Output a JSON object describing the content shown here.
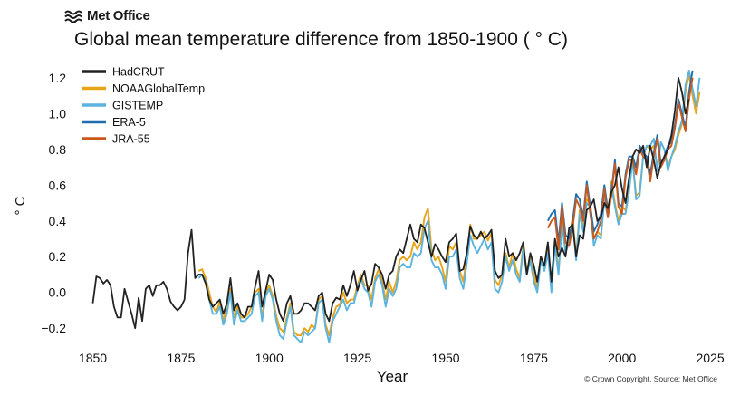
{
  "brand": {
    "name": "Met Office",
    "logo_icon": "met-office-wave-icon"
  },
  "credit": "© Crown Copyright. Source: Met Office",
  "chart_data": {
    "type": "line",
    "title": "Global mean temperature difference from 1850-1900 ( ° C)",
    "xlabel": "Year",
    "ylabel": "° C",
    "xlim": [
      1845,
      2026
    ],
    "ylim": [
      -0.28,
      1.27
    ],
    "xticks": [
      1850,
      1875,
      1900,
      1925,
      1950,
      1975,
      2000,
      2025
    ],
    "yticks": [
      -0.2,
      0.0,
      0.2,
      0.4,
      0.6,
      0.8,
      1.0,
      1.2
    ],
    "ytick_labels": [
      "−0.2",
      "0.0",
      "0.2",
      "0.4",
      "0.6",
      "0.8",
      "1.0",
      "1.2"
    ],
    "grid": false,
    "legend_position": "top-left",
    "series": [
      {
        "name": "HadCRUT",
        "color": "#222222",
        "start_year": 1850,
        "values": [
          -0.06,
          0.09,
          0.08,
          0.05,
          0.07,
          0.04,
          -0.08,
          -0.14,
          -0.14,
          0.02,
          -0.05,
          -0.12,
          -0.2,
          -0.03,
          -0.16,
          0.02,
          0.04,
          -0.02,
          0.04,
          0.04,
          0.06,
          0.02,
          -0.05,
          -0.08,
          -0.1,
          -0.08,
          -0.04,
          0.22,
          0.35,
          0.08,
          0.1,
          0.1,
          0.05,
          -0.04,
          -0.08,
          -0.06,
          -0.04,
          -0.12,
          -0.06,
          0.08,
          -0.1,
          -0.06,
          -0.12,
          -0.14,
          -0.08,
          -0.08,
          0.03,
          0.12,
          -0.08,
          0.01,
          0.1,
          0.07,
          -0.04,
          -0.12,
          -0.16,
          -0.06,
          -0.02,
          -0.12,
          -0.12,
          -0.1,
          -0.06,
          -0.06,
          -0.08,
          -0.1,
          -0.02,
          0.0,
          -0.12,
          -0.16,
          -0.06,
          -0.03,
          -0.04,
          0.04,
          -0.02,
          0.04,
          0.12,
          0.01,
          0.07,
          0.12,
          0.01,
          0.05,
          0.16,
          0.14,
          0.1,
          0.02,
          0.1,
          0.12,
          0.2,
          0.24,
          0.22,
          0.3,
          0.38,
          0.3,
          0.28,
          0.38,
          0.36,
          0.28,
          0.2,
          0.27,
          0.24,
          0.2,
          0.17,
          0.28,
          0.3,
          0.33,
          0.12,
          0.13,
          0.22,
          0.37,
          0.32,
          0.3,
          0.34,
          0.3,
          0.32,
          0.35,
          0.12,
          0.08,
          0.1,
          0.3,
          0.2,
          0.22,
          0.18,
          0.22,
          0.28,
          0.1,
          0.22,
          0.15,
          0.06,
          0.2,
          0.15,
          0.28,
          0.06,
          0.3,
          0.2,
          0.25,
          0.2,
          0.36,
          0.38,
          0.2,
          0.32,
          0.3,
          0.46,
          0.48,
          0.52,
          0.4,
          0.42,
          0.5,
          0.47,
          0.56,
          0.6,
          0.7,
          0.58,
          0.5,
          0.64,
          0.76,
          0.8,
          0.78,
          0.82,
          0.7,
          0.82,
          0.74,
          0.64,
          0.72,
          0.76,
          0.8,
          0.88,
          1.02,
          1.2,
          1.12,
          1.0,
          1.08
        ]
      },
      {
        "name": "NOAAGlobalTemp",
        "color": "#E8A317",
        "start_year": 1880,
        "values": [
          0.12,
          0.13,
          0.08,
          0.0,
          -0.08,
          -0.11,
          -0.05,
          -0.16,
          -0.08,
          0.02,
          -0.14,
          -0.08,
          -0.14,
          -0.14,
          -0.12,
          -0.08,
          0.0,
          0.02,
          -0.14,
          0.0,
          0.04,
          -0.02,
          -0.13,
          -0.2,
          -0.22,
          -0.14,
          -0.06,
          -0.22,
          -0.24,
          -0.24,
          -0.2,
          -0.22,
          -0.18,
          -0.2,
          -0.04,
          -0.02,
          -0.18,
          -0.24,
          -0.14,
          -0.08,
          -0.07,
          0.0,
          -0.06,
          -0.04,
          -0.04,
          0.04,
          0.1,
          0.04,
          0.04,
          -0.04,
          0.08,
          0.13,
          0.06,
          -0.04,
          0.06,
          0.0,
          0.06,
          0.18,
          0.2,
          0.18,
          0.2,
          0.28,
          0.24,
          0.28,
          0.42,
          0.47,
          0.24,
          0.18,
          0.2,
          0.14,
          0.06,
          0.26,
          0.24,
          0.28,
          0.12,
          0.06,
          0.2,
          0.38,
          0.3,
          0.3,
          0.32,
          0.34,
          0.29,
          0.33,
          0.07,
          0.04,
          0.1,
          0.22,
          0.14,
          0.22,
          0.13,
          0.08,
          0.26,
          0.12,
          0.2,
          0.1,
          0.02,
          0.2,
          0.14,
          0.24,
          0.02,
          0.28,
          0.12,
          0.4,
          0.24,
          0.3,
          0.42,
          0.2,
          0.46,
          0.36,
          0.52,
          0.5,
          0.3,
          0.34,
          0.32,
          0.54,
          0.44,
          0.62,
          0.5,
          0.4,
          0.48,
          0.46,
          0.58,
          0.74,
          0.54,
          0.56,
          0.76,
          0.82,
          0.8,
          0.82,
          0.7,
          0.84,
          0.8,
          0.7,
          0.76,
          0.8,
          0.88,
          0.94,
          1.12,
          1.22,
          1.1,
          1.0,
          1.12
        ]
      },
      {
        "name": "GISTEMP",
        "color": "#5BB4E0",
        "start_year": 1880,
        "values": [
          0.08,
          0.1,
          0.06,
          -0.04,
          -0.12,
          -0.12,
          -0.08,
          -0.18,
          -0.12,
          0.0,
          -0.18,
          -0.1,
          -0.16,
          -0.16,
          -0.14,
          -0.12,
          -0.02,
          0.0,
          -0.16,
          -0.02,
          0.02,
          -0.04,
          -0.16,
          -0.24,
          -0.26,
          -0.16,
          -0.08,
          -0.24,
          -0.26,
          -0.28,
          -0.22,
          -0.24,
          -0.22,
          -0.2,
          -0.06,
          -0.04,
          -0.2,
          -0.28,
          -0.16,
          -0.12,
          -0.08,
          -0.04,
          -0.1,
          -0.06,
          -0.06,
          0.02,
          0.08,
          0.02,
          0.0,
          -0.08,
          0.06,
          0.1,
          0.04,
          -0.08,
          0.02,
          -0.02,
          0.02,
          0.14,
          0.16,
          0.14,
          0.14,
          0.22,
          0.2,
          0.22,
          0.36,
          0.4,
          0.18,
          0.14,
          0.14,
          0.1,
          0.02,
          0.2,
          0.2,
          0.24,
          0.08,
          0.02,
          0.16,
          0.32,
          0.26,
          0.22,
          0.26,
          0.3,
          0.24,
          0.28,
          0.02,
          0.0,
          0.06,
          0.2,
          0.12,
          0.18,
          0.1,
          0.06,
          0.24,
          0.1,
          0.18,
          0.06,
          0.0,
          0.18,
          0.12,
          0.22,
          0.0,
          0.26,
          0.1,
          0.38,
          0.22,
          0.28,
          0.4,
          0.18,
          0.44,
          0.34,
          0.5,
          0.48,
          0.26,
          0.32,
          0.3,
          0.52,
          0.42,
          0.6,
          0.48,
          0.38,
          0.44,
          0.44,
          0.56,
          0.74,
          0.52,
          0.54,
          0.76,
          0.82,
          0.82,
          0.86,
          0.68,
          0.84,
          0.8,
          0.68,
          0.76,
          0.82,
          0.9,
          0.96,
          1.16,
          1.24,
          1.14,
          1.04,
          1.2
        ]
      },
      {
        "name": "ERA-5",
        "color": "#1F6FAF",
        "start_year": 1979,
        "values": [
          0.4,
          0.44,
          0.46,
          0.28,
          0.5,
          0.32,
          0.3,
          0.4,
          0.55,
          0.52,
          0.42,
          0.62,
          0.48,
          0.34,
          0.38,
          0.44,
          0.6,
          0.46,
          0.56,
          0.74,
          0.5,
          0.48,
          0.66,
          0.76,
          0.76,
          0.7,
          0.82,
          0.78,
          0.76,
          0.66,
          0.78,
          0.88,
          0.72,
          0.76,
          0.82,
          0.84,
          0.94,
          1.08,
          1.0,
          0.92,
          1.12,
          1.24
        ]
      },
      {
        "name": "JRA-55",
        "color": "#C8581C",
        "start_year": 1979,
        "values": [
          0.36,
          0.4,
          0.42,
          0.24,
          0.48,
          0.28,
          0.26,
          0.36,
          0.52,
          0.48,
          0.4,
          0.6,
          0.44,
          0.3,
          0.34,
          0.4,
          0.58,
          0.42,
          0.54,
          0.72,
          0.48,
          0.44,
          0.64,
          0.74,
          0.74,
          0.66,
          0.8,
          0.76,
          0.74,
          0.62,
          0.76,
          0.86,
          0.7,
          0.74,
          0.8,
          0.82,
          0.92,
          1.06,
          0.98,
          0.9,
          1.08,
          1.2
        ]
      }
    ]
  }
}
